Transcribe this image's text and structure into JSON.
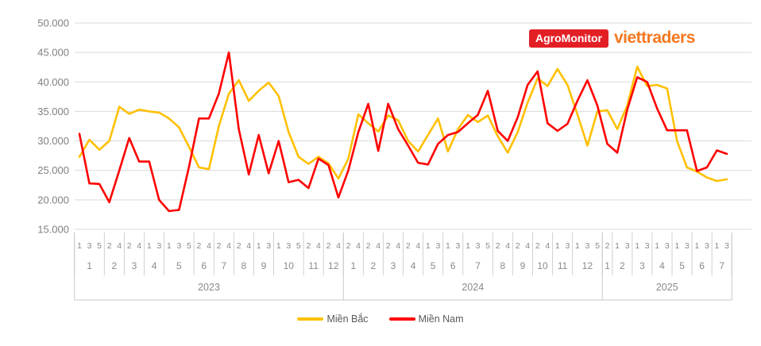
{
  "header": {
    "agromonitor_label": "AgroMonitor",
    "agromonitor_bg": "#e31f26",
    "viettraders_label": "viettraders",
    "viettraders_color": "#f47820"
  },
  "legend": [
    {
      "label": "Miền Bắc",
      "color": "#FFC000"
    },
    {
      "label": "Miền Nam",
      "color": "#FF0000"
    }
  ],
  "chart_data": {
    "type": "line",
    "ylim": [
      15000,
      50000
    ],
    "grid": true,
    "legend_position": "bottom",
    "y_ticks": [
      50000,
      45000,
      40000,
      35000,
      30000,
      25000,
      20000,
      15000
    ],
    "y_tick_labels": [
      "50.000",
      "45.000",
      "40.000",
      "35.000",
      "30.000",
      "25.000",
      "20.000",
      "15.000"
    ],
    "x_axis": {
      "years": [
        {
          "year": "2023",
          "months": [
            {
              "month": "1",
              "weeks": [
                "1",
                "3",
                "5"
              ]
            },
            {
              "month": "2",
              "weeks": [
                "2",
                "4"
              ]
            },
            {
              "month": "3",
              "weeks": [
                "2",
                "4"
              ]
            },
            {
              "month": "4",
              "weeks": [
                "1",
                "3"
              ]
            },
            {
              "month": "5",
              "weeks": [
                "1",
                "3",
                "5"
              ]
            },
            {
              "month": "6",
              "weeks": [
                "2",
                "4"
              ]
            },
            {
              "month": "7",
              "weeks": [
                "2",
                "4"
              ]
            },
            {
              "month": "8",
              "weeks": [
                "2",
                "4"
              ]
            },
            {
              "month": "9",
              "weeks": [
                "1",
                "3"
              ]
            },
            {
              "month": "10",
              "weeks": [
                "1",
                "3",
                "5"
              ]
            },
            {
              "month": "11",
              "weeks": [
                "2",
                "4"
              ]
            },
            {
              "month": "12",
              "weeks": [
                "2",
                "4"
              ]
            }
          ]
        },
        {
          "year": "2024",
          "months": [
            {
              "month": "1",
              "weeks": [
                "2",
                "4"
              ]
            },
            {
              "month": "2",
              "weeks": [
                "2",
                "4"
              ]
            },
            {
              "month": "3",
              "weeks": [
                "2",
                "4"
              ]
            },
            {
              "month": "4",
              "weeks": [
                "2",
                "4"
              ]
            },
            {
              "month": "5",
              "weeks": [
                "1",
                "3"
              ]
            },
            {
              "month": "6",
              "weeks": [
                "1",
                "3"
              ]
            },
            {
              "month": "7",
              "weeks": [
                "1",
                "3",
                "5"
              ]
            },
            {
              "month": "8",
              "weeks": [
                "2",
                "4"
              ]
            },
            {
              "month": "9",
              "weeks": [
                "2",
                "4"
              ]
            },
            {
              "month": "10",
              "weeks": [
                "2",
                "4"
              ]
            },
            {
              "month": "11",
              "weeks": [
                "1",
                "3"
              ]
            },
            {
              "month": "12",
              "weeks": [
                "1",
                "3",
                "5"
              ]
            }
          ]
        },
        {
          "year": "2025",
          "months": [
            {
              "month": "1",
              "weeks": [
                "2"
              ]
            },
            {
              "month": "2",
              "weeks": [
                "1",
                "3"
              ]
            },
            {
              "month": "3",
              "weeks": [
                "1",
                "3"
              ]
            },
            {
              "month": "4",
              "weeks": [
                "1",
                "3"
              ]
            },
            {
              "month": "5",
              "weeks": [
                "1",
                "3"
              ]
            },
            {
              "month": "6",
              "weeks": [
                "1",
                "3"
              ]
            },
            {
              "month": "7",
              "weeks": [
                "1",
                "3"
              ]
            }
          ]
        }
      ]
    },
    "series": [
      {
        "name": "Miền Bắc",
        "color": "#FFC000",
        "values": [
          27300,
          30200,
          28500,
          30000,
          35800,
          34600,
          35300,
          35000,
          34800,
          33800,
          32300,
          29000,
          25500,
          25200,
          32500,
          38000,
          40300,
          36800,
          38500,
          39900,
          37600,
          31500,
          27300,
          26100,
          27300,
          26200,
          23600,
          27000,
          34500,
          33000,
          31600,
          34300,
          33500,
          30000,
          28200,
          31000,
          33800,
          28200,
          32000,
          34400,
          33200,
          34300,
          30800,
          28000,
          31500,
          36500,
          40600,
          39300,
          42200,
          39500,
          34500,
          29200,
          35000,
          35200,
          32000,
          36000,
          42600,
          39300,
          39500,
          38900,
          30000,
          25500,
          24800,
          23800,
          23200,
          23500
        ]
      },
      {
        "name": "Miền Nam",
        "color": "#FF0000",
        "values": [
          31200,
          22800,
          22700,
          19600,
          25000,
          30500,
          26500,
          26500,
          20000,
          18100,
          18300,
          25600,
          33800,
          33800,
          38000,
          45000,
          32000,
          24300,
          31000,
          24500,
          30000,
          23000,
          23400,
          22000,
          27000,
          25900,
          20400,
          25000,
          31500,
          36300,
          28300,
          36300,
          32000,
          29200,
          26300,
          26000,
          29500,
          31000,
          31500,
          33000,
          34400,
          38500,
          31700,
          30000,
          34000,
          39500,
          41800,
          33000,
          31700,
          32900,
          36800,
          40300,
          36000,
          29500,
          28000,
          35300,
          40800,
          40000,
          35500,
          31800,
          31800,
          31800,
          24900,
          25500,
          28400,
          27800
        ]
      }
    ]
  }
}
